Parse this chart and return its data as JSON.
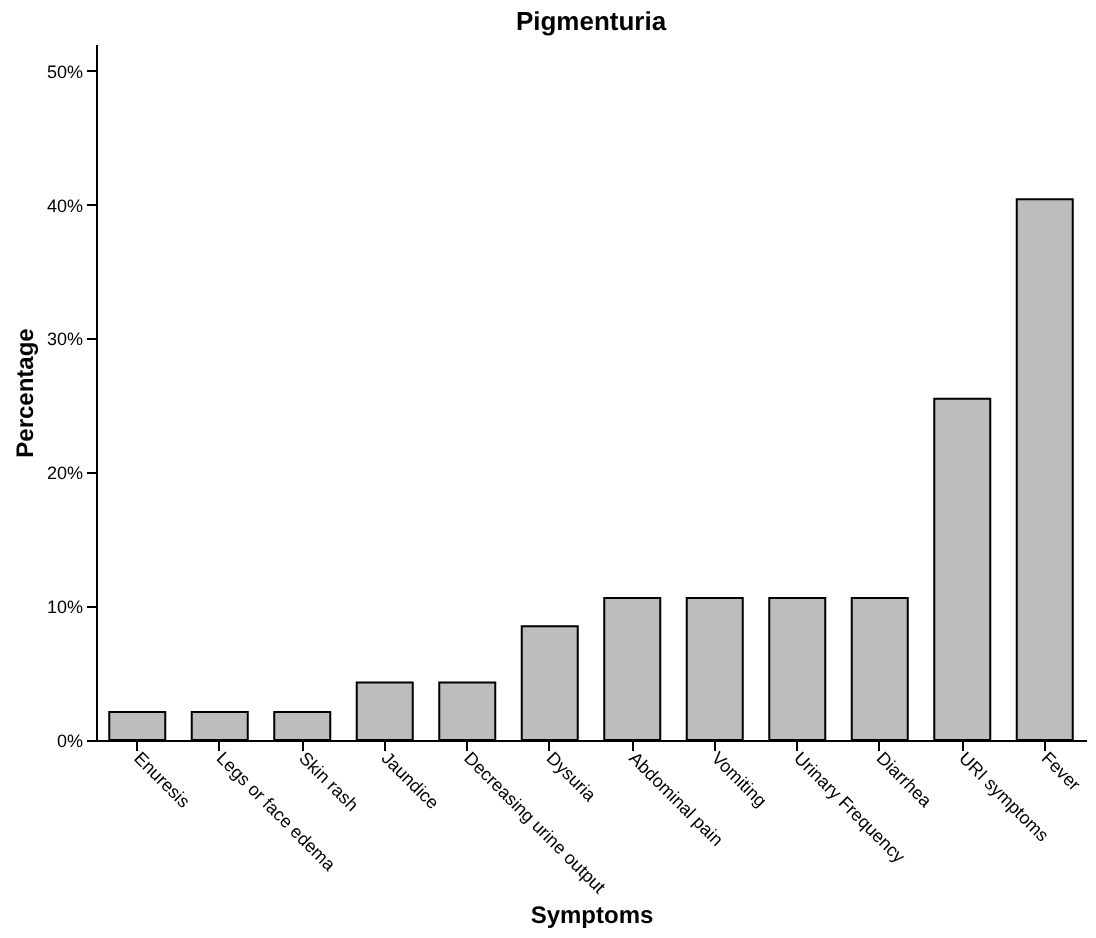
{
  "chart_data": {
    "type": "bar",
    "title": "Pigmenturia",
    "xlabel": "Symptoms",
    "ylabel": "Percentage",
    "categories": [
      "Enuresis",
      "Legs or face edema",
      "Skin rash",
      "Jaundice",
      "Decreasing urine output",
      "Dysuria",
      "Abdominal pain",
      "Vomiting",
      "Urinary Frequency",
      "Diarrhea",
      "URI symptoms",
      "Fever"
    ],
    "values": [
      2.1,
      2.1,
      2.1,
      4.3,
      4.3,
      8.5,
      10.6,
      10.6,
      10.6,
      10.6,
      25.5,
      40.4
    ],
    "color": "#bdbdbd",
    "ylim": [
      0,
      52
    ],
    "yticks": [
      {
        "value": 0,
        "label": "0%"
      },
      {
        "value": 10,
        "label": "10%"
      },
      {
        "value": 20,
        "label": "20%"
      },
      {
        "value": 30,
        "label": "30%"
      },
      {
        "value": 40,
        "label": "40%"
      },
      {
        "value": 50,
        "label": "50%"
      }
    ],
    "grid": false
  }
}
